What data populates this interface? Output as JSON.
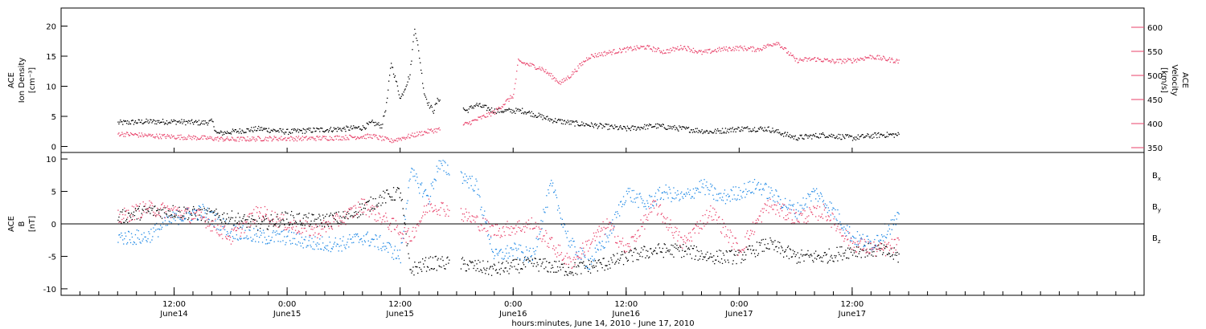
{
  "chart_data": [
    {
      "type": "scatter",
      "panel": "top",
      "title": "",
      "ylabel": [
        "ACE",
        "Ion Density",
        "[cm⁻³]"
      ],
      "ylim": [
        -1,
        23
      ],
      "yticks": [
        0,
        5,
        10,
        15,
        20
      ],
      "y2label": [
        "ACE",
        "Velocity",
        "[km/s]"
      ],
      "y2lim": [
        340,
        640
      ],
      "y2ticks": [
        350,
        400,
        450,
        500,
        550,
        600
      ],
      "colors": {
        "density": "#000000",
        "velocity": "#e8426a"
      },
      "series": [
        {
          "name": "",
          "axis": "left",
          "color": "#000000",
          "x_hours": [
            0,
            3,
            6,
            9,
            10,
            10.5,
            12,
            15,
            18,
            21,
            24,
            26,
            27,
            28,
            28.5,
            29,
            30,
            31,
            31.5,
            32,
            32.5,
            33,
            33.5,
            34,
            36,
            37,
            38,
            40,
            41,
            43,
            45,
            46,
            48,
            51,
            54,
            57,
            60,
            63,
            66,
            69,
            72,
            75,
            78,
            81,
            83
          ],
          "values": [
            4,
            4.2,
            4.2,
            4,
            4.2,
            2.2,
            2.5,
            3,
            2.5,
            2.8,
            3,
            3.2,
            4,
            3.5,
            7,
            14,
            8,
            12,
            20,
            15,
            9,
            7,
            6,
            8,
            7,
            6,
            7,
            6,
            6,
            6,
            5,
            4.5,
            4,
            3.5,
            3,
            3.5,
            3,
            2.5,
            3,
            3,
            1.5,
            2,
            1.5,
            2,
            2
          ]
        },
        {
          "name": "",
          "axis": "right",
          "color": "#e8426a",
          "x_hours": [
            0,
            4,
            8,
            10,
            12,
            16,
            20,
            24,
            27,
            29,
            30,
            33,
            36,
            37,
            40,
            42,
            42.5,
            45,
            47,
            48,
            50,
            52,
            54,
            56,
            58,
            60,
            62,
            64,
            66,
            68,
            70,
            72,
            74,
            76,
            78,
            80,
            83
          ],
          "values": [
            380,
            375,
            372,
            370,
            368,
            370,
            370,
            372,
            375,
            365,
            370,
            385,
            395,
            400,
            425,
            460,
            530,
            515,
            485,
            500,
            540,
            548,
            555,
            560,
            550,
            560,
            548,
            555,
            558,
            555,
            570,
            532,
            535,
            530,
            532,
            540,
            530
          ]
        }
      ]
    },
    {
      "type": "scatter",
      "panel": "bottom",
      "title": "",
      "ylabel": [
        "ACE",
        "B",
        "[nT]"
      ],
      "ylim": [
        -11,
        11
      ],
      "yticks": [
        -10,
        -5,
        0,
        5,
        10
      ],
      "zero_line": true,
      "legend": {
        "placement": "right",
        "entries": [
          "B",
          "B",
          "B"
        ],
        "subscripts": [
          "x",
          "y",
          "z"
        ]
      },
      "colors": {
        "Bx": "#000000",
        "By": "#1e88e5",
        "Bz": "#e8426a"
      },
      "series": [
        {
          "name": "B",
          "color": "#000000",
          "x_hours": [
            0,
            3,
            6,
            9,
            12,
            15,
            18,
            21,
            24,
            26,
            28,
            30,
            31,
            33,
            36,
            40,
            44,
            48,
            52,
            54,
            57,
            60,
            63,
            66,
            69,
            72,
            75,
            78,
            81,
            83
          ],
          "values": [
            1,
            2,
            2,
            1.5,
            1,
            0,
            1,
            0.5,
            1,
            2.5,
            4,
            5,
            -7,
            -6,
            -6,
            -7,
            -6,
            -7,
            -6,
            -5,
            -4,
            -4,
            -5,
            -5,
            -3,
            -5,
            -5,
            -4,
            -4,
            -5
          ]
        },
        {
          "name": "B",
          "color": "#1e88e5",
          "x_hours": [
            0,
            3,
            6,
            9,
            12,
            15,
            18,
            21,
            24,
            26,
            28,
            30,
            31,
            33,
            34,
            36,
            38,
            40,
            42,
            44,
            46,
            48,
            50,
            52,
            54,
            56,
            58,
            60,
            62,
            64,
            66,
            68,
            70,
            72,
            74,
            76,
            78,
            80,
            83
          ],
          "values": [
            -2,
            -2,
            1,
            2,
            -1,
            -2,
            -2,
            -3,
            -3,
            -2,
            -3,
            -5,
            8,
            4,
            9,
            8,
            6,
            -5,
            -4,
            -5,
            6,
            -3,
            -6,
            -2,
            5,
            3,
            5,
            4,
            6,
            4,
            5,
            6,
            4,
            2,
            5,
            2,
            -2,
            -3,
            1
          ]
        },
        {
          "name": "B",
          "color": "#e8426a",
          "x_hours": [
            0,
            3,
            6,
            9,
            12,
            15,
            18,
            21,
            24,
            26,
            28,
            30,
            31,
            33,
            36,
            40,
            44,
            48,
            52,
            54,
            57,
            60,
            63,
            66,
            69,
            72,
            75,
            78,
            81,
            83
          ],
          "values": [
            1,
            2.5,
            2,
            1,
            -2,
            2,
            0,
            -1,
            1,
            3,
            1,
            -1,
            -2,
            3,
            2,
            -1,
            0,
            -6,
            0,
            -4,
            3,
            -3,
            2,
            -4,
            3,
            1,
            2,
            -3,
            -4,
            -3
          ]
        }
      ]
    }
  ],
  "x_axis": {
    "xlabel": "hours:minutes, June 14, 2010 - June 17, 2010",
    "xlim_hours": [
      -6,
      109
    ],
    "ticks": [
      {
        "hour": 6,
        "time": "12:00",
        "day": "June14"
      },
      {
        "hour": 18,
        "time": "0:00",
        "day": "June15"
      },
      {
        "hour": 30,
        "time": "12:00",
        "day": "June15"
      },
      {
        "hour": 42,
        "time": "0:00",
        "day": "June16"
      },
      {
        "hour": 54,
        "time": "12:00",
        "day": "June16"
      },
      {
        "hour": 66,
        "time": "0:00",
        "day": "June17"
      },
      {
        "hour": 78,
        "time": "12:00",
        "day": "June17"
      }
    ]
  }
}
